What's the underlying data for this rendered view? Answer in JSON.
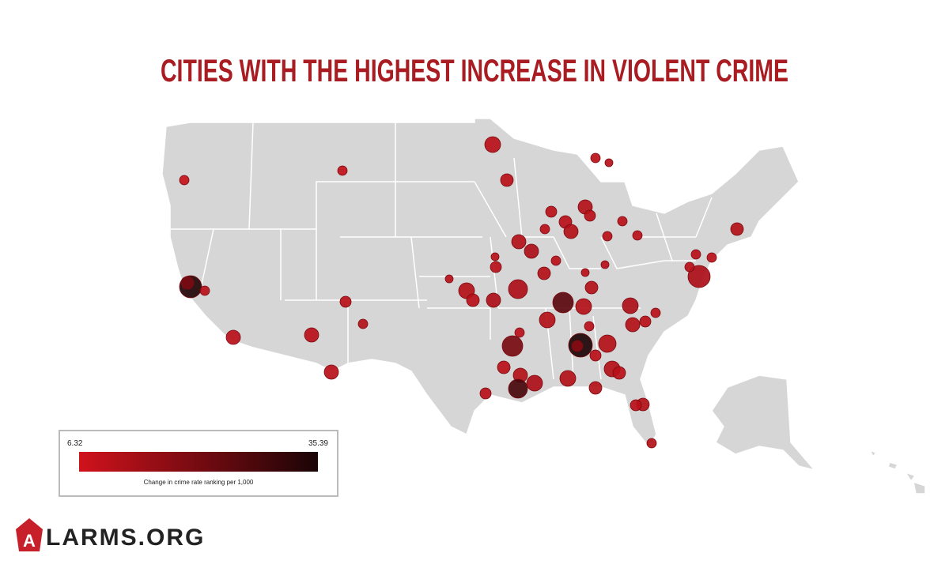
{
  "title": "CITIES WITH THE HIGHEST INCREASE IN VIOLENT CRIME",
  "legend": {
    "min": 6.32,
    "max": 35.39,
    "label": "Change in crime rate ranking per 1,000"
  },
  "cities": {
    "values": [
      8,
      9,
      10,
      10,
      34,
      20,
      10,
      10,
      10,
      10,
      11,
      10,
      10,
      11,
      10,
      12,
      11,
      12,
      10,
      12,
      11,
      25,
      11,
      11,
      11,
      10,
      10,
      20,
      10,
      11,
      28,
      12,
      11,
      35,
      18,
      11,
      10,
      11,
      11,
      10,
      12,
      11,
      10,
      10,
      11,
      10,
      11,
      10,
      10,
      10,
      11,
      10,
      10,
      10,
      10,
      11,
      10,
      10,
      10,
      10,
      10,
      10,
      10,
      12,
      11,
      10,
      10,
      10
    ]
  },
  "logo": {
    "letter": "A",
    "text": "LARMS.ORG"
  }
}
